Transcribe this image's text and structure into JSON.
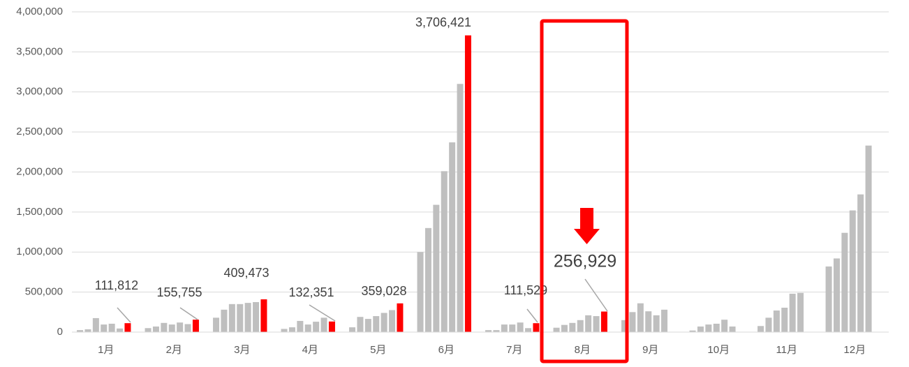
{
  "chart_data": {
    "type": "bar",
    "categories": [
      "1月",
      "2月",
      "3月",
      "4月",
      "5月",
      "6月",
      "7月",
      "8月",
      "9月",
      "10月",
      "11月",
      "12月"
    ],
    "series": [
      {
        "color": "#bfbfbf",
        "values": [
          25000,
          50000,
          180000,
          40000,
          60000,
          1000000,
          25000,
          55000,
          150000,
          20000,
          76000,
          820000
        ]
      },
      {
        "color": "#bfbfbf",
        "values": [
          35000,
          70000,
          280000,
          60000,
          190000,
          1300000,
          25000,
          90000,
          250000,
          70000,
          180000,
          920000
        ]
      },
      {
        "color": "#bfbfbf",
        "values": [
          175000,
          115000,
          350000,
          140000,
          165000,
          1590000,
          95000,
          115000,
          360000,
          95000,
          270000,
          1240000
        ]
      },
      {
        "color": "#bfbfbf",
        "values": [
          95000,
          95000,
          350000,
          95000,
          200000,
          2010000,
          95000,
          150000,
          260000,
          105000,
          305000,
          1520000
        ]
      },
      {
        "color": "#bfbfbf",
        "values": [
          105000,
          120000,
          365000,
          130000,
          240000,
          2370000,
          120000,
          210000,
          210000,
          155000,
          480000,
          1720000
        ]
      },
      {
        "color": "#bfbfbf",
        "values": [
          45000,
          100000,
          375000,
          180000,
          275000,
          3100000,
          50000,
          200000,
          280000,
          70000,
          490000,
          2330000
        ]
      },
      {
        "color": "#ff0000",
        "values": [
          111812,
          155755,
          409473,
          132351,
          359028,
          3706421,
          111529,
          256929,
          null,
          null,
          null,
          null
        ],
        "value_labels": [
          "111,812",
          "155,755",
          "409,473",
          "132,351",
          "359,028",
          "3,706,421",
          "111,529",
          "256,929",
          null,
          null,
          null,
          null
        ]
      }
    ],
    "ylim": [
      0,
      4000000
    ],
    "yticks": [
      0,
      {
        "value": 500000,
        "label": "500,000"
      },
      {
        "value": 1000000,
        "label": "1,000,000"
      },
      {
        "value": 1500000,
        "label": "1,500,000"
      },
      {
        "value": 2000000,
        "label": "2,000,000"
      },
      {
        "value": 2500000,
        "label": "2,500,000"
      },
      {
        "value": 3000000,
        "label": "3,000,000"
      },
      {
        "value": 3500000,
        "label": "3,500,000"
      },
      {
        "value": 4000000,
        "label": "4,000,000"
      }
    ],
    "grid": true
  }
}
